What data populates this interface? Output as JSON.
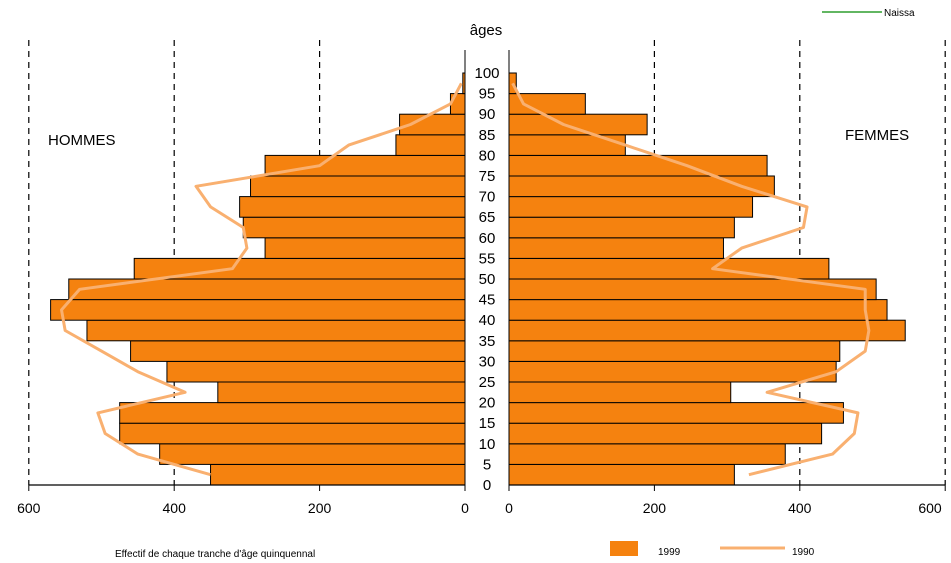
{
  "chart_data": {
    "type": "bar",
    "subtype": "population-pyramid",
    "ages_label": "âges",
    "left_label": "HOMMES",
    "right_label": "FEMMES",
    "top_right_legend": "Naissa",
    "x_caption": "Effectif de chaque tranche d'âge quinquennal",
    "age_ticks": [
      "0",
      "5",
      "10",
      "15",
      "20",
      "25",
      "30",
      "35",
      "40",
      "45",
      "50",
      "55",
      "60",
      "65",
      "70",
      "75",
      "80",
      "85",
      "90",
      "95",
      "100"
    ],
    "age_groups": [
      "0",
      "5",
      "10",
      "15",
      "20",
      "25",
      "30",
      "35",
      "40",
      "45",
      "50",
      "55",
      "60",
      "65",
      "70",
      "75",
      "80",
      "85",
      "90",
      "95"
    ],
    "xlim": [
      0,
      600
    ],
    "x_ticks_left": [
      "600",
      "400",
      "200",
      "0"
    ],
    "x_ticks_right": [
      "0",
      "200",
      "400",
      "600"
    ],
    "grid": "dashed vertical lines at 200, 400 and 600",
    "series": [
      {
        "name": "1999",
        "kind": "bars",
        "color": "#f5820f",
        "hommes": [
          350,
          420,
          475,
          475,
          340,
          410,
          460,
          520,
          570,
          545,
          455,
          275,
          305,
          310,
          295,
          275,
          95,
          90,
          20,
          3
        ],
        "femmes": [
          310,
          380,
          430,
          460,
          305,
          450,
          455,
          545,
          520,
          505,
          440,
          295,
          310,
          335,
          365,
          355,
          160,
          190,
          105,
          10
        ]
      },
      {
        "name": "1990",
        "kind": "line",
        "color": "#f9b070",
        "hommes": [
          350,
          450,
          495,
          505,
          385,
          450,
          500,
          550,
          555,
          530,
          320,
          300,
          305,
          350,
          370,
          200,
          160,
          75,
          20,
          5
        ],
        "femmes": [
          330,
          445,
          475,
          480,
          355,
          450,
          490,
          495,
          490,
          490,
          280,
          320,
          405,
          410,
          320,
          245,
          160,
          75,
          20,
          5
        ]
      }
    ],
    "legend": [
      {
        "label": "1999",
        "kind": "bar"
      },
      {
        "label": "1990",
        "kind": "line"
      }
    ]
  }
}
